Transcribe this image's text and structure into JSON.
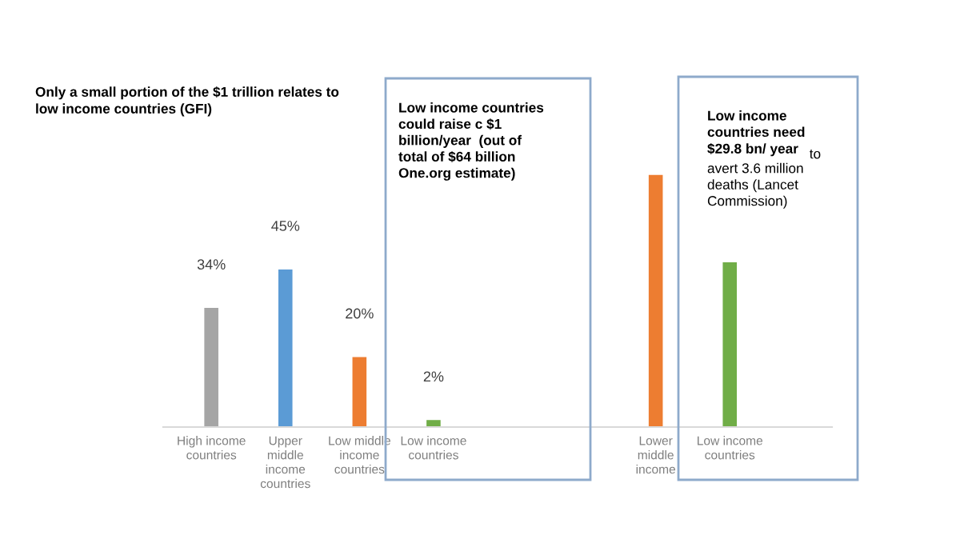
{
  "chart_data": {
    "type": "bar",
    "title": "Only a small portion of the $1 trillion relates to\nlow income countries (GFI)",
    "categories": [
      "High income\ncountries",
      "Upper\nmiddle\nincome\ncountries",
      "Low middle\nincome\ncountries",
      "Low income\ncountries",
      null,
      null,
      "Lower\nmiddle\nincome",
      "Low income\ncountries"
    ],
    "values": [
      34,
      45,
      20,
      2,
      null,
      null,
      72,
      47
    ],
    "colors": [
      "#a5a5a5",
      "#5b9bd5",
      "#ed7d31",
      "#70ad47",
      null,
      null,
      "#ed7d31",
      "#70ad47"
    ],
    "value_labels": [
      "34%",
      "45%",
      "20%",
      "2%",
      null,
      null,
      null,
      null
    ],
    "annotations": [
      "Low income countries\ncould raise c $1\nbillion/year  (out of\ntotal of $64 billion\nOne.org estimate)",
      "Low income\ncountries need\n$29.8 bn/ year",
      "to\navert 3.6 million\ndeaths (Lancet\nCommission)"
    ],
    "grid": false,
    "legend": false
  }
}
